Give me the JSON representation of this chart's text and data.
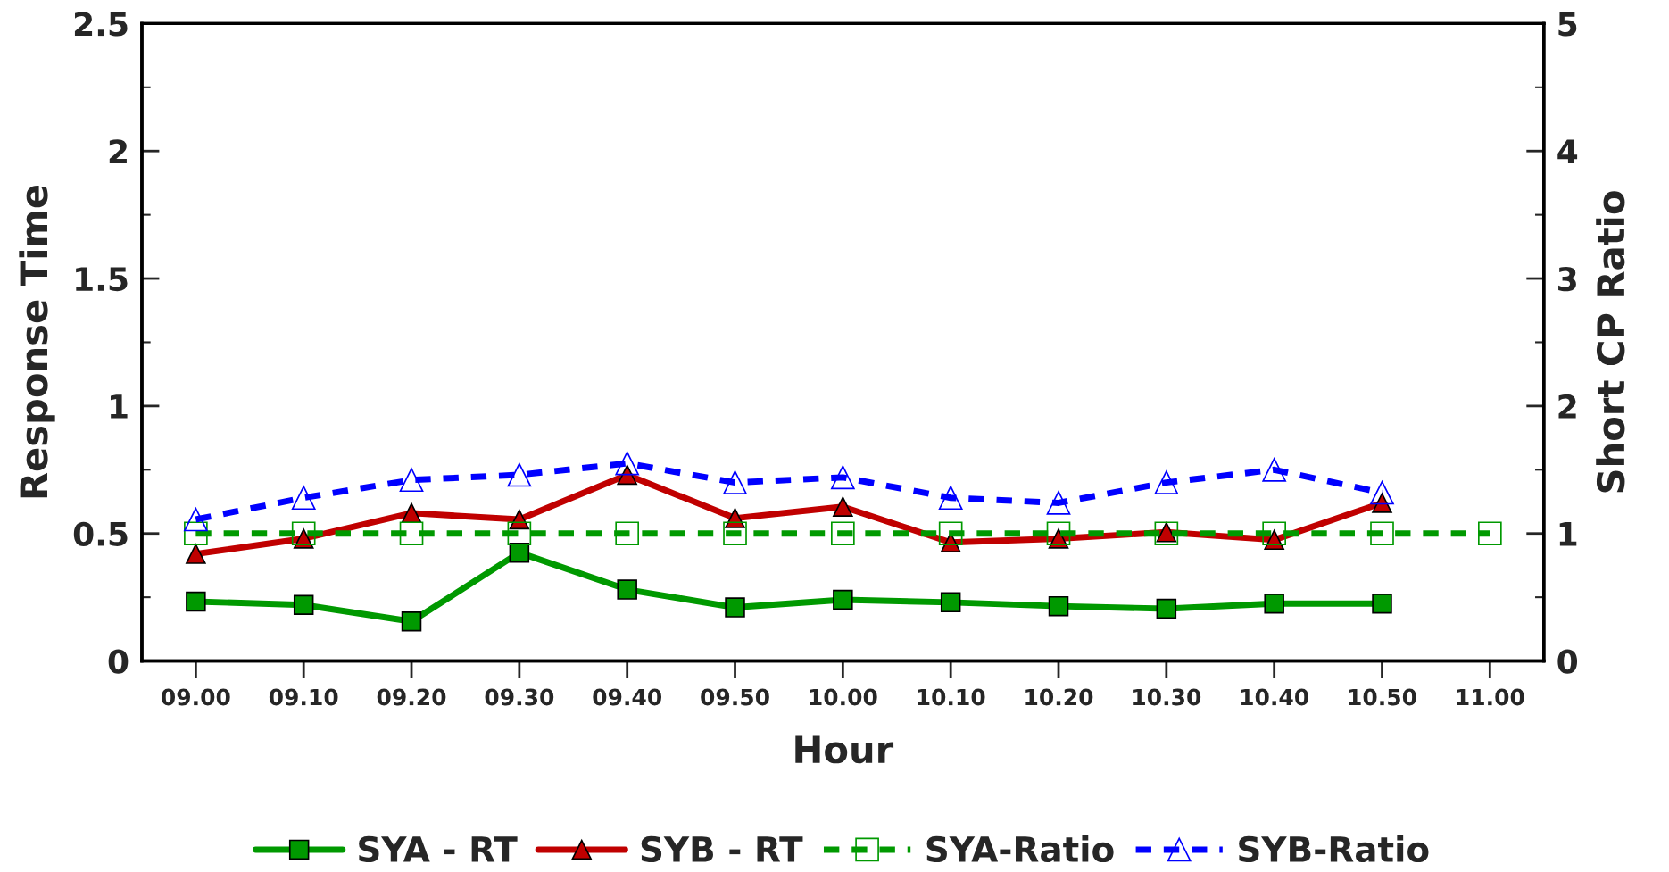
{
  "chart_data": {
    "type": "line",
    "xlabel": "Hour",
    "ylabel": "Response Time",
    "y2label": "Short CP Ratio",
    "categories": [
      "09.00",
      "09.10",
      "09.20",
      "09.30",
      "09.40",
      "09.50",
      "10.00",
      "10.10",
      "10.20",
      "10.30",
      "10.40",
      "10.50",
      "11.00"
    ],
    "ylim": [
      0,
      2.5
    ],
    "yticks": [
      0,
      0.5,
      1,
      1.5,
      2,
      2.5
    ],
    "y2lim": [
      0,
      5
    ],
    "y2ticks": [
      0,
      1,
      2,
      3,
      4,
      5
    ],
    "grid": false,
    "legend": "bottom",
    "series": [
      {
        "name": "SYA - RT",
        "color": "#009900",
        "marker": "square",
        "line_style": "solid",
        "values": [
          0.233,
          0.22,
          0.155,
          0.425,
          0.28,
          0.21,
          0.24,
          0.23,
          0.215,
          0.205,
          0.225,
          0.225,
          null
        ]
      },
      {
        "name": "SYB - RT",
        "color": "#c00000",
        "marker": "triangle",
        "line_style": "solid",
        "values": [
          0.42,
          0.48,
          0.58,
          0.555,
          0.73,
          0.56,
          0.605,
          0.465,
          0.48,
          0.505,
          0.475,
          0.62,
          null
        ]
      },
      {
        "name": "SYA-Ratio",
        "color": "#009900",
        "marker": "square",
        "line_style": "dashed",
        "axis": "y2",
        "values": [
          1,
          1,
          1,
          1,
          1,
          1,
          1,
          1,
          1,
          1,
          1,
          1,
          1
        ]
      },
      {
        "name": "SYB-Ratio",
        "color": "#0000ff",
        "marker": "triangle",
        "line_style": "dashed",
        "axis": "y2",
        "values": [
          1.11,
          1.28,
          1.42,
          1.46,
          1.55,
          1.4,
          1.44,
          1.28,
          1.24,
          1.4,
          1.5,
          1.32,
          null
        ]
      }
    ]
  }
}
